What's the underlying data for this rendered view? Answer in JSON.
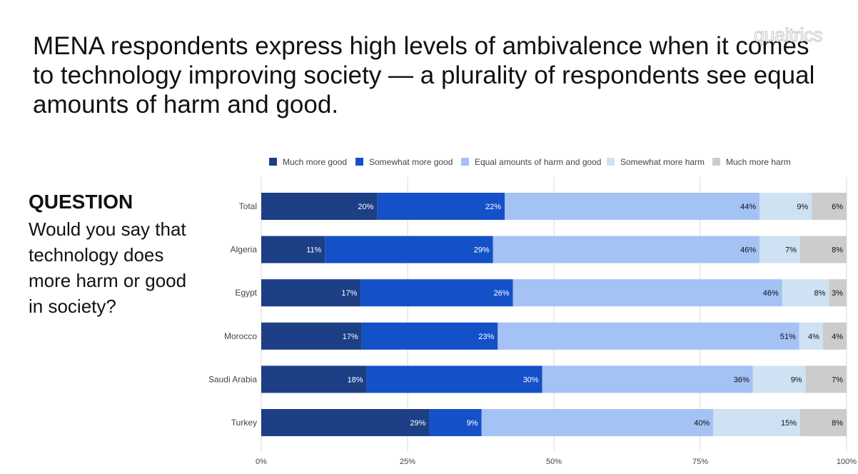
{
  "title": "MENA respondents express high levels of ambivalence when it comes to technology improving society — a plurality of respondents see equal amounts of harm and good.",
  "logo_text": "qualtrics",
  "question": {
    "heading": "QUESTION",
    "text": "Would you say that technology does more harm or good in society?"
  },
  "colors": {
    "much_more_good": "#1c3f86",
    "somewhat_more_good": "#1451c8",
    "equal": "#a4c2f4",
    "somewhat_more_harm": "#cfe2f3",
    "much_more_harm": "#cccccc",
    "gridline": "#d9d9d9",
    "axis_text": "#444444"
  },
  "chart_data": {
    "type": "bar",
    "orientation": "horizontal",
    "stacked": true,
    "stack_100_percent": true,
    "categories": [
      "Total",
      "Algeria",
      "Egypt",
      "Morocco",
      "Saudi Arabia",
      "Turkey"
    ],
    "series": [
      {
        "name": "Much more good",
        "values": [
          20,
          11,
          17,
          17,
          18,
          29
        ],
        "labels": [
          "20%",
          "11%",
          "17%",
          "17%",
          "18%",
          "29%"
        ]
      },
      {
        "name": "Somewhat more good",
        "values": [
          22,
          29,
          26,
          23,
          30,
          9
        ],
        "labels": [
          "22%",
          "29%",
          "26%",
          "23%",
          "30%",
          "9%"
        ]
      },
      {
        "name": "Equal amounts of harm and good",
        "values": [
          44,
          46,
          46,
          51,
          36,
          40
        ],
        "labels": [
          "44%",
          "46%",
          "46%",
          "51%",
          "36%",
          "40%"
        ]
      },
      {
        "name": "Somewhat more harm",
        "values": [
          9,
          7,
          8,
          4,
          9,
          15
        ],
        "labels": [
          "9%",
          "7%",
          "8%",
          "4%",
          "9%",
          "15%"
        ]
      },
      {
        "name": "Much more harm",
        "values": [
          6,
          8,
          3,
          4,
          7,
          8
        ],
        "labels": [
          "6%",
          "8%",
          "3%",
          "4%",
          "7%",
          "8%"
        ]
      }
    ],
    "xlim": [
      0,
      100
    ],
    "xticks": [
      0,
      25,
      50,
      75,
      100
    ],
    "xtick_labels": [
      "0%",
      "25%",
      "50%",
      "75%",
      "100%"
    ],
    "grid": true,
    "legend_position": "top"
  }
}
